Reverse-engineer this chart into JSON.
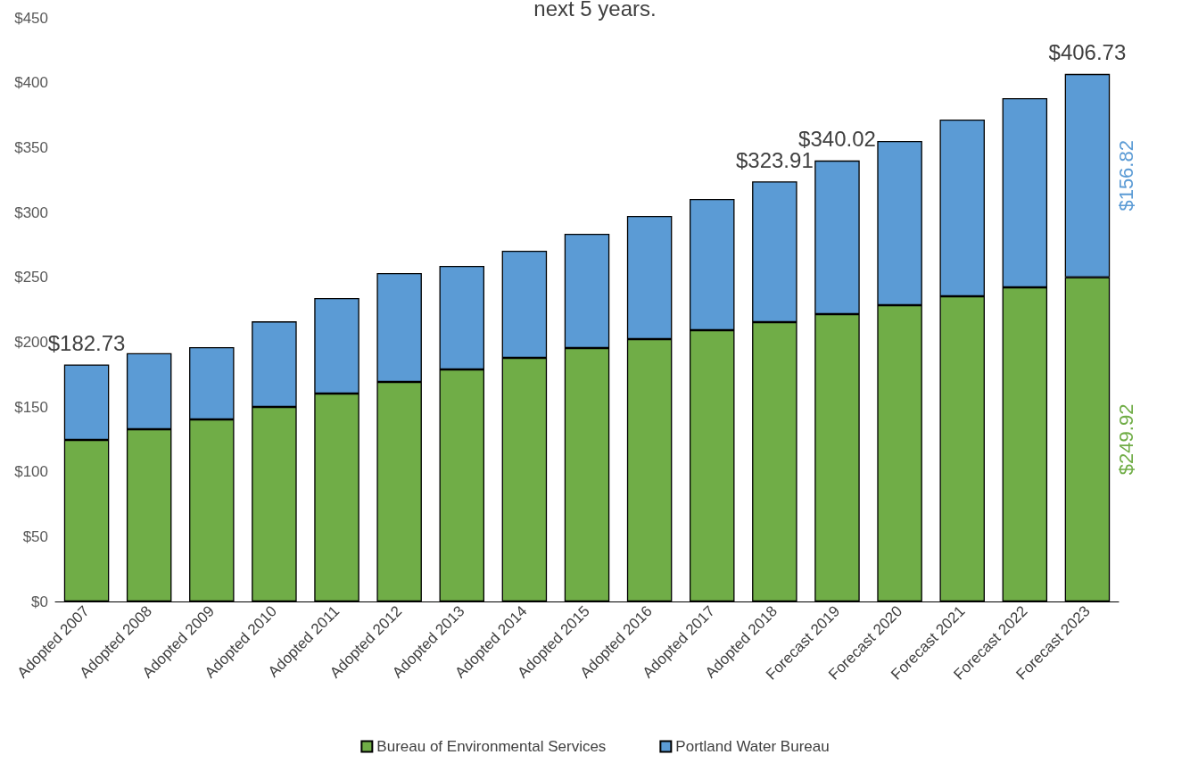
{
  "chart_data": {
    "type": "bar",
    "title": "next 5 years.",
    "stacked": true,
    "categories": [
      "Adopted 2007",
      "Adopted 2008",
      "Adopted 2009",
      "Adopted 2010",
      "Adopted 2011",
      "Adopted 2012",
      "Adopted 2013",
      "Adopted 2014",
      "Adopted 2015",
      "Adopted 2016",
      "Adopted 2017",
      "Adopted 2018",
      "Forecast 2019",
      "Forecast 2020",
      "Forecast 2021",
      "Forecast 2022",
      "Forecast 2023"
    ],
    "series": [
      {
        "name": "Bureau of Environmental Services",
        "color": "#70ad47",
        "values": [
          124.5,
          132.8,
          140.4,
          150,
          160.3,
          169.3,
          178.9,
          187.8,
          195.4,
          202.3,
          209.2,
          215.4,
          221.6,
          228.4,
          235.3,
          242.2,
          249.92
        ],
        "value_labels": [
          null,
          null,
          null,
          null,
          null,
          null,
          null,
          null,
          null,
          null,
          null,
          null,
          null,
          null,
          null,
          null,
          "$249.92"
        ]
      },
      {
        "name": "Portland Water Bureau",
        "color": "#5b9bd5",
        "values": [
          58.23,
          58.7,
          55.7,
          66,
          73.7,
          83.9,
          79.8,
          82.6,
          88.1,
          95,
          101.1,
          108.51,
          118.42,
          126.6,
          136.3,
          145.9,
          156.82
        ],
        "value_labels": [
          null,
          null,
          null,
          null,
          null,
          null,
          null,
          null,
          null,
          null,
          null,
          null,
          null,
          null,
          null,
          null,
          "$156.82"
        ]
      }
    ],
    "totals": [
      "$182.73",
      null,
      null,
      null,
      null,
      null,
      null,
      null,
      null,
      null,
      null,
      "$323.91",
      "$340.02",
      null,
      null,
      null,
      "$406.73"
    ],
    "ylim": [
      0,
      450
    ],
    "yticks": [
      {
        "value": 0,
        "label": "$0"
      },
      {
        "value": 50,
        "label": "$50"
      },
      {
        "value": 100,
        "label": "$100"
      },
      {
        "value": 150,
        "label": "$150"
      },
      {
        "value": 200,
        "label": "$200"
      },
      {
        "value": 250,
        "label": "$250"
      },
      {
        "value": 300,
        "label": "$300"
      },
      {
        "value": 350,
        "label": "$350"
      },
      {
        "value": 400,
        "label": "$400"
      },
      {
        "value": 450,
        "label": "$450"
      }
    ],
    "grid": false,
    "legend": "bottom"
  }
}
